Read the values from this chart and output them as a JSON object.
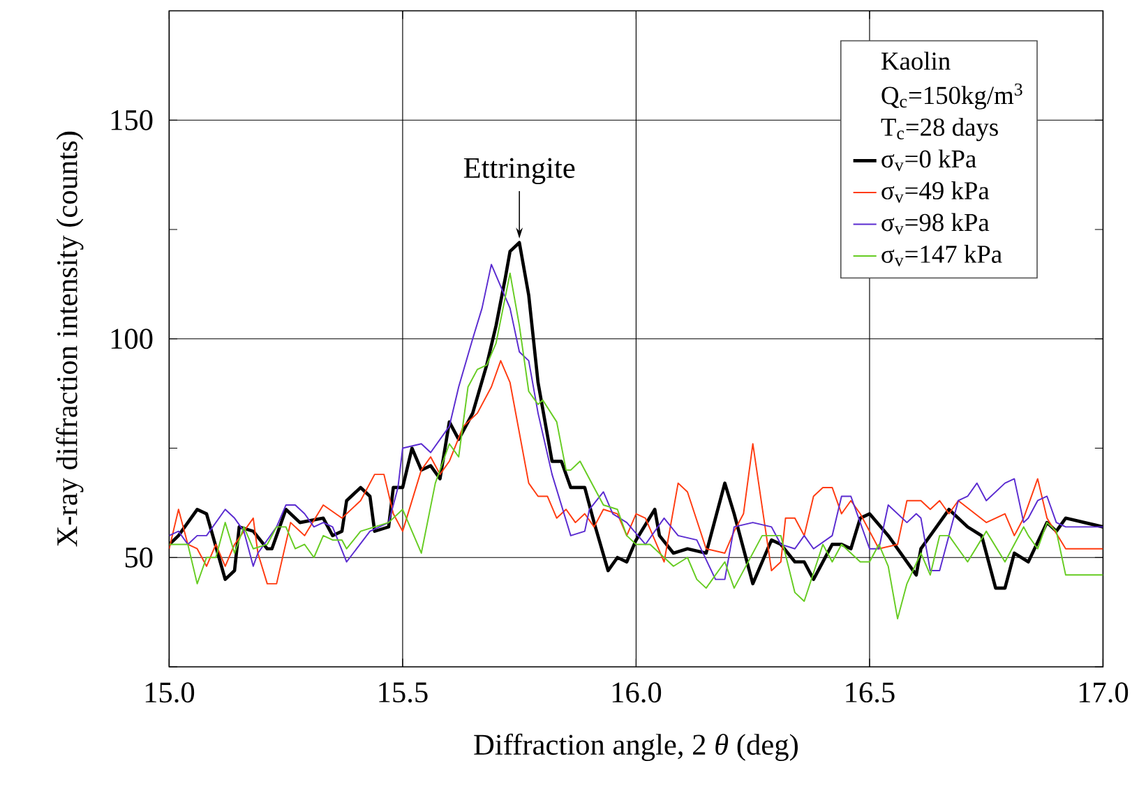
{
  "chart_data": {
    "type": "line",
    "xlabel": "Diffraction angle, 2 *θ*  (deg)",
    "ylabel": "X-ray diffraction intensity (counts)",
    "legend_title": "Kaolin",
    "annotations": [
      "Q$_{c}$=150kg/m$^{3}$",
      "T$_{c}$=28 days",
      {
        "text": "Ettringite",
        "x": 15.75,
        "y": 122
      }
    ],
    "xlim": [
      15,
      17
    ],
    "ylim": [
      25,
      175
    ],
    "xticks": [
      {
        "value": 15,
        "label": "15.0"
      },
      {
        "value": 15.5,
        "label": "15.5"
      },
      {
        "value": 16,
        "label": "16.0"
      },
      {
        "value": 16.5,
        "label": "16.5"
      },
      {
        "value": 17,
        "label": "17.0"
      }
    ],
    "yticks": [
      {
        "value": 25,
        "label": null
      },
      50,
      {
        "value": 75,
        "label": null
      },
      100,
      {
        "value": 125,
        "label": null
      },
      150,
      {
        "value": 175,
        "label": null
      }
    ],
    "grid": true,
    "legend": "top right",
    "series": [
      {
        "name": "σ$_{v}$=0 kPa",
        "color": "#000000",
        "x": [
          15.0,
          15.02,
          15.06,
          15.08,
          15.12,
          15.14,
          15.15,
          15.18,
          15.21,
          15.22,
          15.25,
          15.28,
          15.33,
          15.35,
          15.37,
          15.38,
          15.41,
          15.43,
          15.44,
          15.47,
          15.48,
          15.5,
          15.52,
          15.54,
          15.56,
          15.58,
          15.6,
          15.62,
          15.65,
          15.68,
          15.7,
          15.72,
          15.73,
          15.75,
          15.77,
          15.79,
          15.82,
          15.84,
          15.86,
          15.89,
          15.91,
          15.94,
          15.96,
          15.98,
          16.0,
          16.04,
          16.05,
          16.08,
          16.11,
          16.15,
          16.19,
          16.21,
          16.25,
          16.29,
          16.31,
          16.34,
          16.36,
          16.38,
          16.42,
          16.44,
          16.46,
          16.48,
          16.5,
          16.54,
          16.6,
          16.61,
          16.67,
          16.71,
          16.74,
          16.77,
          16.79,
          16.81,
          16.84,
          16.88,
          16.9,
          16.92,
          17.0
        ],
        "values": [
          53,
          55,
          61,
          60,
          45,
          47,
          57,
          56,
          52,
          52,
          61,
          58,
          59,
          55,
          56,
          63,
          66,
          64,
          56,
          57,
          66,
          66,
          75,
          70,
          71,
          68,
          81,
          77,
          83,
          94,
          103,
          114,
          120,
          122,
          110,
          90,
          72,
          72,
          66,
          66,
          58,
          47,
          50,
          49,
          54,
          61,
          55,
          51,
          52,
          51,
          67,
          60,
          44,
          54,
          53,
          49,
          49,
          45,
          53,
          53,
          52,
          59,
          60,
          55,
          46,
          52,
          61,
          57,
          55,
          43,
          43,
          51,
          49,
          58,
          56,
          59,
          57
        ]
      },
      {
        "name": "σ$_{v}$=49 kPa",
        "color": "#ff3b10",
        "x": [
          15.0,
          15.02,
          15.04,
          15.06,
          15.08,
          15.1,
          15.12,
          15.14,
          15.18,
          15.19,
          15.21,
          15.23,
          15.26,
          15.29,
          15.33,
          15.37,
          15.41,
          15.44,
          15.46,
          15.48,
          15.5,
          15.54,
          15.56,
          15.58,
          15.6,
          15.63,
          15.66,
          15.69,
          15.71,
          15.73,
          15.77,
          15.79,
          15.81,
          15.83,
          15.85,
          15.87,
          15.89,
          15.91,
          15.93,
          15.96,
          15.98,
          16.0,
          16.02,
          16.06,
          16.09,
          16.11,
          16.15,
          16.19,
          16.21,
          16.23,
          16.25,
          16.29,
          16.31,
          16.32,
          16.34,
          16.36,
          16.38,
          16.4,
          16.42,
          16.44,
          16.46,
          16.48,
          16.52,
          16.56,
          16.58,
          16.61,
          16.63,
          16.65,
          16.67,
          16.69,
          16.75,
          16.79,
          16.81,
          16.83,
          16.86,
          16.88,
          16.92,
          17.0
        ],
        "values": [
          52,
          61,
          53,
          52,
          48,
          53,
          48,
          53,
          59,
          51,
          44,
          44,
          58,
          55,
          62,
          59,
          63,
          69,
          69,
          60,
          56,
          70,
          73,
          69,
          72,
          80,
          83,
          89,
          95,
          90,
          67,
          64,
          64,
          59,
          61,
          58,
          60,
          57,
          61,
          60,
          55,
          60,
          59,
          49,
          67,
          65,
          52,
          51,
          56,
          60,
          76,
          47,
          49,
          59,
          59,
          55,
          64,
          66,
          66,
          60,
          63,
          60,
          52,
          53,
          63,
          63,
          61,
          63,
          60,
          63,
          58,
          60,
          55,
          59,
          68,
          59,
          52,
          52
        ]
      },
      {
        "name": "σ$_{v}$=98 kPa",
        "color": "#5a2bd0",
        "x": [
          15.0,
          15.02,
          15.04,
          15.06,
          15.08,
          15.12,
          15.14,
          15.16,
          15.18,
          15.19,
          15.23,
          15.25,
          15.27,
          15.29,
          15.31,
          15.33,
          15.35,
          15.38,
          15.43,
          15.45,
          15.47,
          15.49,
          15.5,
          15.54,
          15.56,
          15.6,
          15.62,
          15.65,
          15.67,
          15.69,
          15.73,
          15.75,
          15.77,
          15.79,
          15.82,
          15.86,
          15.89,
          15.9,
          15.93,
          15.95,
          15.98,
          16.02,
          16.06,
          16.09,
          16.13,
          16.17,
          16.19,
          16.21,
          16.25,
          16.29,
          16.31,
          16.34,
          16.36,
          16.38,
          16.42,
          16.44,
          16.46,
          16.5,
          16.52,
          16.54,
          16.58,
          16.6,
          16.61,
          16.63,
          16.65,
          16.69,
          16.71,
          16.73,
          16.75,
          16.79,
          16.81,
          16.83,
          16.84,
          16.86,
          16.88,
          16.9,
          16.92,
          17.0
        ],
        "values": [
          55,
          56,
          53,
          55,
          55,
          61,
          59,
          56,
          48,
          51,
          57,
          62,
          62,
          60,
          57,
          58,
          57,
          49,
          56,
          57,
          58,
          66,
          75,
          76,
          74,
          80,
          89,
          100,
          107,
          117,
          107,
          97,
          95,
          83,
          69,
          55,
          56,
          61,
          65,
          60,
          58,
          53,
          59,
          55,
          54,
          45,
          45,
          57,
          58,
          57,
          53,
          52,
          55,
          52,
          55,
          64,
          64,
          52,
          52,
          62,
          58,
          60,
          59,
          47,
          47,
          63,
          64,
          67,
          63,
          67,
          68,
          58,
          59,
          63,
          64,
          58,
          57,
          57
        ]
      },
      {
        "name": "σ$_{v}$=147 kPa",
        "color": "#66cc22",
        "x": [
          15.0,
          15.04,
          15.06,
          15.08,
          15.1,
          15.12,
          15.14,
          15.16,
          15.18,
          15.21,
          15.23,
          15.25,
          15.27,
          15.29,
          15.31,
          15.33,
          15.35,
          15.37,
          15.38,
          15.41,
          15.44,
          15.47,
          15.5,
          15.52,
          15.54,
          15.57,
          15.6,
          15.62,
          15.64,
          15.66,
          15.68,
          15.7,
          15.73,
          15.75,
          15.77,
          15.79,
          15.8,
          15.83,
          15.85,
          15.86,
          15.88,
          15.91,
          15.93,
          15.96,
          15.98,
          16.0,
          16.03,
          16.08,
          16.11,
          16.13,
          16.15,
          16.19,
          16.21,
          16.27,
          16.31,
          16.34,
          16.36,
          16.4,
          16.42,
          16.44,
          16.48,
          16.5,
          16.52,
          16.54,
          16.56,
          16.58,
          16.61,
          16.63,
          16.65,
          16.67,
          16.69,
          16.71,
          16.75,
          16.79,
          16.83,
          16.84,
          16.86,
          16.88,
          16.9,
          16.92,
          17.0
        ],
        "values": [
          53,
          53,
          44,
          50,
          50,
          58,
          51,
          57,
          52,
          53,
          57,
          57,
          52,
          53,
          50,
          55,
          54,
          54,
          52,
          56,
          57,
          58,
          61,
          56,
          51,
          67,
          76,
          73,
          89,
          93,
          94,
          99,
          115,
          103,
          88,
          85,
          86,
          81,
          70,
          70,
          72,
          66,
          62,
          61,
          55,
          53,
          53,
          48,
          50,
          45,
          43,
          49,
          43,
          55,
          55,
          42,
          40,
          53,
          49,
          53,
          49,
          49,
          53,
          48,
          36,
          44,
          51,
          46,
          55,
          55,
          52,
          49,
          56,
          49,
          57,
          55,
          52,
          58,
          56,
          46,
          46
        ]
      }
    ]
  }
}
